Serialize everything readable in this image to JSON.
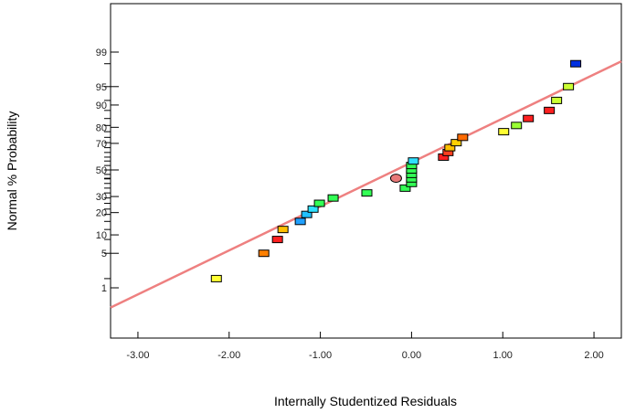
{
  "chart_data": {
    "type": "scatter",
    "title": "",
    "xlabel": "Internally Studentized Residuals",
    "ylabel": "Normal % Probability",
    "xlim": [
      -3.3,
      2.3
    ],
    "x_ticks": [
      -3,
      -2,
      -1,
      0,
      1,
      2
    ],
    "x_tick_labels": [
      "-3.00",
      "-2.00",
      "-1.00",
      "0.00",
      "1.00",
      "2.00"
    ],
    "y_scale": "normal-probability",
    "y_ticks": [
      1,
      5,
      10,
      20,
      30,
      50,
      70,
      80,
      90,
      95,
      99
    ],
    "y_tick_labels": [
      "1",
      "5",
      "10",
      "20",
      "30",
      "50",
      "70",
      "80",
      "90",
      "95",
      "99"
    ],
    "grid": false,
    "reference_line": {
      "color": "#ee8080",
      "points": [
        [
          -3.3,
          0.33
        ],
        [
          2.3,
          98.4
        ]
      ]
    },
    "points": [
      {
        "x": -2.14,
        "y": 1.6,
        "color": "#ffff33",
        "shape": "square"
      },
      {
        "x": -1.62,
        "y": 5,
        "color": "#ff8000",
        "shape": "square"
      },
      {
        "x": -1.47,
        "y": 8.5,
        "color": "#ff2020",
        "shape": "square"
      },
      {
        "x": -1.41,
        "y": 12,
        "color": "#ffc000",
        "shape": "square"
      },
      {
        "x": -1.22,
        "y": 15.5,
        "color": "#20a0ff",
        "shape": "square"
      },
      {
        "x": -1.15,
        "y": 19,
        "color": "#20c0ff",
        "shape": "square"
      },
      {
        "x": -1.08,
        "y": 22,
        "color": "#30e0ff",
        "shape": "square"
      },
      {
        "x": -1.01,
        "y": 25.5,
        "color": "#33ff55",
        "shape": "square"
      },
      {
        "x": -0.86,
        "y": 29,
        "color": "#33ff55",
        "shape": "square"
      },
      {
        "x": -0.49,
        "y": 32.5,
        "color": "#33ff55",
        "shape": "square"
      },
      {
        "x": -0.17,
        "y": 43.5,
        "color": "#e87878",
        "shape": "circle"
      },
      {
        "x": -0.07,
        "y": 36,
        "color": "#33ff55",
        "shape": "square"
      },
      {
        "x": 0.0,
        "y": 39.5,
        "color": "#33ff55",
        "shape": "square"
      },
      {
        "x": 0.0,
        "y": 43,
        "color": "#33ff55",
        "shape": "square"
      },
      {
        "x": 0.0,
        "y": 46.5,
        "color": "#33ff55",
        "shape": "square"
      },
      {
        "x": 0.0,
        "y": 50,
        "color": "#33ff55",
        "shape": "square"
      },
      {
        "x": 0.0,
        "y": 53.5,
        "color": "#33ff55",
        "shape": "square"
      },
      {
        "x": 0.02,
        "y": 57,
        "color": "#30e0ff",
        "shape": "square"
      },
      {
        "x": 0.35,
        "y": 60,
        "color": "#ff2020",
        "shape": "square"
      },
      {
        "x": 0.4,
        "y": 63.5,
        "color": "#ff4020",
        "shape": "square"
      },
      {
        "x": 0.42,
        "y": 67,
        "color": "#ffc000",
        "shape": "square"
      },
      {
        "x": 0.49,
        "y": 70.5,
        "color": "#ffd000",
        "shape": "square"
      },
      {
        "x": 0.56,
        "y": 74,
        "color": "#ff6a00",
        "shape": "square"
      },
      {
        "x": 1.01,
        "y": 77.5,
        "color": "#ffff33",
        "shape": "square"
      },
      {
        "x": 1.15,
        "y": 81,
        "color": "#99ff33",
        "shape": "square"
      },
      {
        "x": 1.28,
        "y": 84.5,
        "color": "#ff2020",
        "shape": "square"
      },
      {
        "x": 1.51,
        "y": 88,
        "color": "#ff2020",
        "shape": "square"
      },
      {
        "x": 1.59,
        "y": 91.5,
        "color": "#ccff33",
        "shape": "square"
      },
      {
        "x": 1.72,
        "y": 95,
        "color": "#ccff33",
        "shape": "square"
      },
      {
        "x": 1.8,
        "y": 98.2,
        "color": "#0030e0",
        "shape": "square"
      }
    ]
  }
}
